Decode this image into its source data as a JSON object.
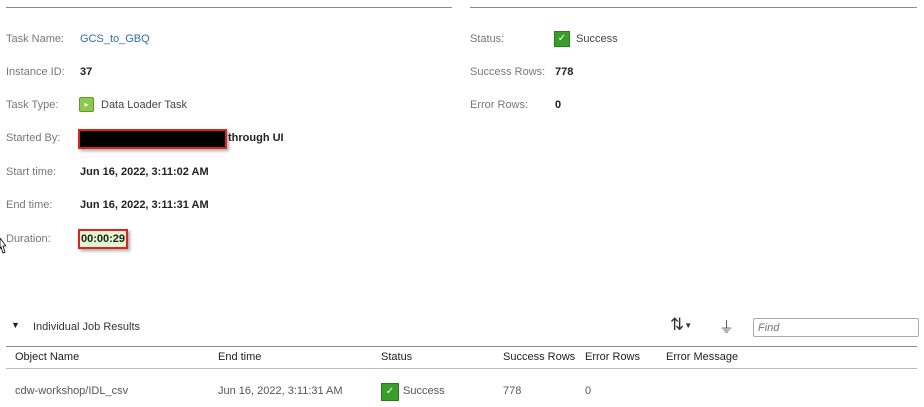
{
  "summary": {
    "task_name_label": "Task Name:",
    "task_name": "GCS_to_GBQ",
    "instance_id_label": "Instance ID:",
    "instance_id": "37",
    "task_type_label": "Task Type:",
    "task_type": "Data Loader Task",
    "started_by_label": "Started By:",
    "started_by_suffix": "through UI",
    "start_time_label": "Start time:",
    "start_time": "Jun 16, 2022, 3:11:02 AM",
    "end_time_label": "End time:",
    "end_time": "Jun 16, 2022, 3:11:31 AM",
    "duration_label": "Duration:",
    "duration": "00:00:29",
    "status_label": "Status:",
    "status": "Success",
    "success_rows_label": "Success Rows:",
    "success_rows": "778",
    "error_rows_label": "Error Rows:",
    "error_rows": "0"
  },
  "jobs": {
    "title": "Individual Job Results",
    "find_placeholder": "Find",
    "columns": [
      "Object Name",
      "End time",
      "Status",
      "Success Rows",
      "Error Rows",
      "Error Message"
    ],
    "rows": [
      {
        "object_name": "cdw-workshop/IDL_csv",
        "end_time": "Jun 16, 2022, 3:11:31 AM",
        "status": "Success",
        "success_rows": "778",
        "error_rows": "0",
        "error_message": ""
      }
    ]
  },
  "colors": {
    "success": "#3c9e2a",
    "link": "#2a6ebb",
    "highlight": "#e2f5cf"
  }
}
